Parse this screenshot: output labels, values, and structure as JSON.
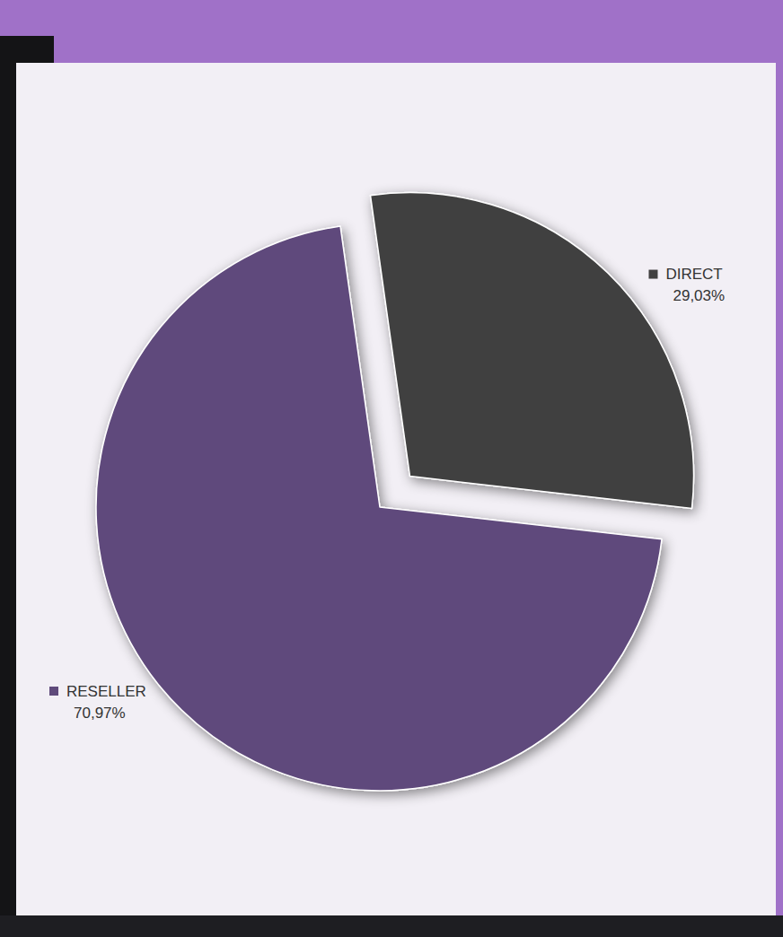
{
  "chart_data": {
    "type": "pie",
    "categories": [
      "DIRECT",
      "RESELLER"
    ],
    "values": [
      29.03,
      70.97
    ],
    "value_labels": [
      "29,03%",
      "70,97%"
    ],
    "colors": [
      "#404040",
      "#5f4a7b"
    ],
    "data_labels": true
  }
}
